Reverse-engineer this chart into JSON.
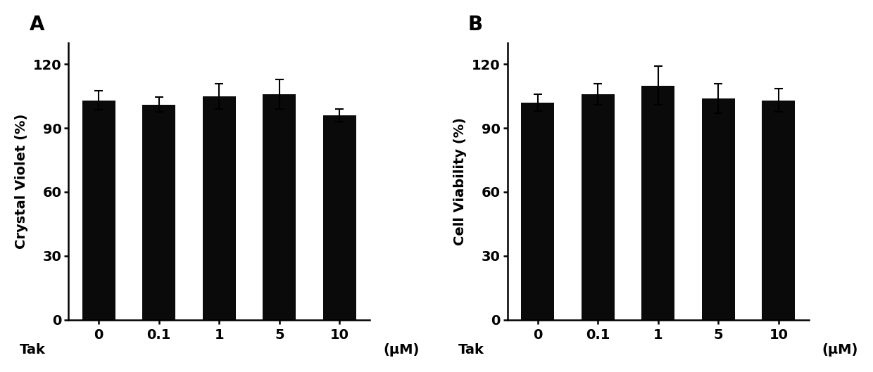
{
  "panel_A": {
    "label": "A",
    "ylabel": "Crystal Violet (%)",
    "categories": [
      "0",
      "0.1",
      "1",
      "5",
      "10"
    ],
    "values": [
      103,
      101,
      105,
      106,
      96
    ],
    "errors": [
      4.5,
      3.5,
      6.0,
      7.0,
      3.0
    ],
    "bar_color": "#0a0a0a",
    "ylim": [
      0,
      130
    ],
    "yticks": [
      0,
      30,
      60,
      90,
      120
    ],
    "xlabel_tak": "Tak",
    "xlabel_unit": "(μM)"
  },
  "panel_B": {
    "label": "B",
    "ylabel": "Cell Viability (%)",
    "categories": [
      "0",
      "0.1",
      "1",
      "5",
      "10"
    ],
    "values": [
      102,
      106,
      110,
      104,
      103
    ],
    "errors": [
      4.0,
      5.0,
      9.0,
      7.0,
      5.5
    ],
    "bar_color": "#0a0a0a",
    "ylim": [
      0,
      130
    ],
    "yticks": [
      0,
      30,
      60,
      90,
      120
    ],
    "xlabel_tak": "Tak",
    "xlabel_unit": "(μM)"
  },
  "background_color": "#ffffff",
  "bar_width": 0.55,
  "tick_fontsize": 14,
  "ylabel_fontsize": 14,
  "panel_label_fontsize": 20
}
